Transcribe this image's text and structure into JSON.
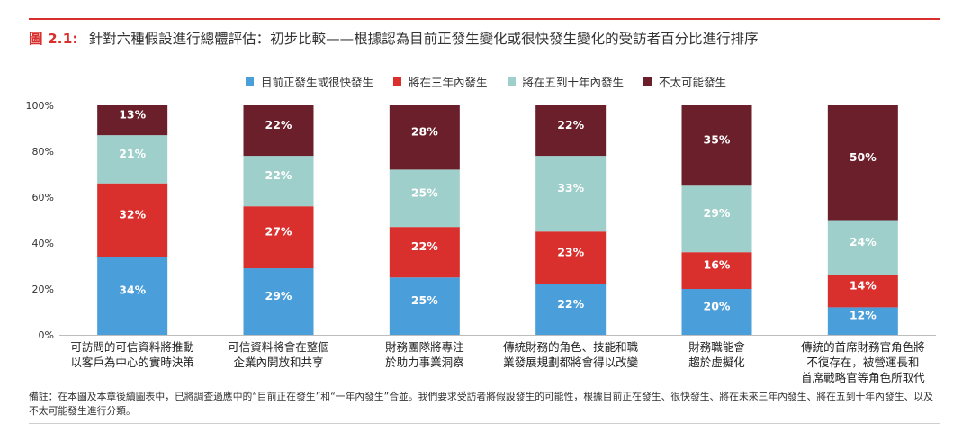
{
  "header": {
    "figure_label": "圖 2.1:",
    "title": "針對六種假設進行總體評估：初步比較——根據認為目前正發生變化或很快發生變化的受訪者百分比進行排序"
  },
  "note": "備註：在本圖及本章後續圖表中，已將調查過應中的“目前正在發生”和“一年內發生”合並。我們要求受訪者將假設發生的可能性，根據目前正在發生、很快發生、將在未來三年內發生、將在五到十年內發生、以及不太可能發生進行分類。",
  "chart_data": {
    "type": "bar",
    "stacked": true,
    "title": "",
    "xlabel": "",
    "ylabel": "",
    "ylim": [
      0,
      100
    ],
    "yticks": [
      "0%",
      "20%",
      "40%",
      "60%",
      "80%",
      "100%"
    ],
    "legend_position": "top-center",
    "grid": false,
    "categories": [
      [
        "可訪問的可信資料將推動",
        "以客戶為中心的實時決策"
      ],
      [
        "可信資料將會在整個",
        "企業內開放和共享"
      ],
      [
        "財務團隊將專注",
        "於助力事業洞察"
      ],
      [
        "傳統財務的角色、技能和職",
        "業發展規劃都將會得以改變"
      ],
      [
        "財務職能會",
        "趨於虛擬化"
      ],
      [
        "傳統的首席財務官角色將",
        "不復存在，被營運長和",
        "首席戰略官等角色所取代"
      ]
    ],
    "series": [
      {
        "name": "目前正發生或很快發生",
        "color": "#4a9ed9",
        "values": [
          34,
          29,
          25,
          22,
          20,
          12
        ]
      },
      {
        "name": "將在三年內發生",
        "color": "#d9302e",
        "values": [
          32,
          27,
          22,
          23,
          16,
          14
        ]
      },
      {
        "name": "將在五到十年內發生",
        "color": "#9ecfca",
        "values": [
          21,
          22,
          25,
          33,
          29,
          24
        ]
      },
      {
        "name": "不太可能發生",
        "color": "#6b1f2a",
        "values": [
          13,
          22,
          28,
          22,
          35,
          50
        ]
      }
    ]
  }
}
